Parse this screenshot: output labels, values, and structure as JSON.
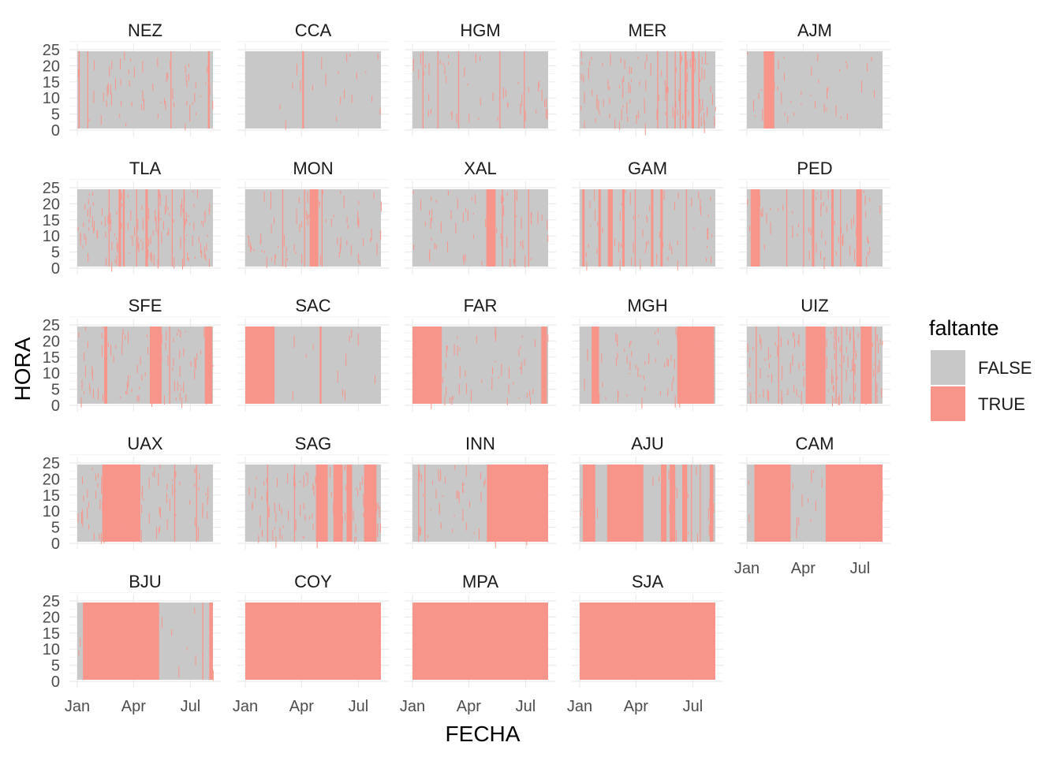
{
  "chart_data": {
    "type": "heatmap",
    "title": "",
    "xlabel": "FECHA",
    "ylabel": "HORA",
    "x_range": [
      "2023-01-01",
      "2023-08-06"
    ],
    "y_range": [
      0,
      23
    ],
    "y_ticks": [
      "0",
      "5",
      "10",
      "15",
      "20",
      "25"
    ],
    "x_ticks": [
      "Jan",
      "Apr",
      "Jul"
    ],
    "grid": true,
    "legend": {
      "title": "faltante",
      "position": "right",
      "entries": [
        {
          "label": "FALSE",
          "color": "#c8c8c8"
        },
        {
          "label": "TRUE",
          "color": "#f8958b"
        }
      ]
    },
    "colors": {
      "false": "#c8c8c8",
      "true": "#f8958b",
      "grid": "#ebebeb"
    },
    "note_units": "missing intervals given as date ranges; scattered short gaps described per panel as count of isolated missing hours",
    "panels": [
      {
        "name": "NEZ",
        "full_missing": [
          [
            "2023-01-03",
            "2023-01-03"
          ],
          [
            "2023-07-29",
            "2023-07-30"
          ]
        ],
        "scatter": 60,
        "vlines": [
          "2023-01-17",
          "2023-05-30"
        ]
      },
      {
        "name": "CCA",
        "full_missing": [
          [
            "2023-04-02",
            "2023-04-03"
          ]
        ],
        "scatter": 20,
        "vlines": []
      },
      {
        "name": "HGM",
        "full_missing": [],
        "scatter": 45,
        "vlines": [
          "2023-01-17",
          "2023-02-10",
          "2023-03-15",
          "2023-05-20",
          "2023-06-28"
        ]
      },
      {
        "name": "MER",
        "full_missing": [
          [
            "2023-06-18",
            "2023-06-19"
          ],
          [
            "2023-06-29",
            "2023-07-01"
          ]
        ],
        "scatter": 110,
        "vlines": [
          "2023-05-05",
          "2023-05-20",
          "2023-06-02",
          "2023-06-10",
          "2023-07-10"
        ]
      },
      {
        "name": "AJM",
        "full_missing": [
          [
            "2023-01-28",
            "2023-02-12"
          ]
        ],
        "scatter": 40,
        "vlines": []
      },
      {
        "name": "TLA",
        "full_missing": [
          [
            "2023-03-08",
            "2023-03-10"
          ],
          [
            "2023-03-15",
            "2023-03-16"
          ],
          [
            "2023-04-20",
            "2023-04-22"
          ]
        ],
        "scatter": 130,
        "vlines": [
          "2023-02-20",
          "2023-04-05",
          "2023-05-10",
          "2023-06-01",
          "2023-06-20"
        ]
      },
      {
        "name": "MON",
        "full_missing": [
          [
            "2023-04-14",
            "2023-04-26"
          ]
        ],
        "scatter": 70,
        "vlines": [
          "2023-03-01",
          "2023-04-05",
          "2023-05-03"
        ]
      },
      {
        "name": "XAL",
        "full_missing": [
          [
            "2023-04-29",
            "2023-05-12"
          ]
        ],
        "scatter": 65,
        "vlines": [
          "2023-05-24",
          "2023-06-13",
          "2023-07-05"
        ]
      },
      {
        "name": "GAM",
        "full_missing": [
          [
            "2023-01-05",
            "2023-01-07"
          ],
          [
            "2023-01-31",
            "2023-02-02"
          ],
          [
            "2023-02-15",
            "2023-02-21"
          ],
          [
            "2023-03-10",
            "2023-03-12"
          ],
          [
            "2023-04-25",
            "2023-04-27"
          ],
          [
            "2023-05-10",
            "2023-05-12"
          ]
        ],
        "scatter": 60,
        "vlines": [
          "2023-03-30",
          "2023-06-20"
        ]
      },
      {
        "name": "PED",
        "full_missing": [
          [
            "2023-01-07",
            "2023-01-20"
          ],
          [
            "2023-04-15",
            "2023-04-17"
          ],
          [
            "2023-05-16",
            "2023-05-18"
          ],
          [
            "2023-06-25",
            "2023-07-02"
          ]
        ],
        "scatter": 70,
        "vlines": [
          "2023-03-05",
          "2023-04-01",
          "2023-05-30"
        ]
      },
      {
        "name": "SFE",
        "full_missing": [
          [
            "2023-02-13",
            "2023-02-16"
          ],
          [
            "2023-04-27",
            "2023-05-14"
          ],
          [
            "2023-07-24",
            "2023-08-03"
          ]
        ],
        "scatter": 85,
        "vlines": [
          "2023-05-28"
        ]
      },
      {
        "name": "SAC",
        "full_missing": [
          [
            "2023-01-01",
            "2023-02-15"
          ],
          [
            "2023-04-30",
            "2023-05-01"
          ]
        ],
        "scatter": 15,
        "vlines": []
      },
      {
        "name": "FAR",
        "full_missing": [
          [
            "2023-01-01",
            "2023-02-15"
          ],
          [
            "2023-07-26",
            "2023-08-02"
          ]
        ],
        "scatter": 60,
        "vlines": []
      },
      {
        "name": "MGH",
        "full_missing": [
          [
            "2023-01-20",
            "2023-01-30"
          ],
          [
            "2023-06-06",
            "2023-08-02"
          ]
        ],
        "scatter": 70,
        "vlines": []
      },
      {
        "name": "UIZ",
        "full_missing": [
          [
            "2023-04-05",
            "2023-05-05"
          ],
          [
            "2023-07-02",
            "2023-07-18"
          ]
        ],
        "scatter": 140,
        "vlines": [
          "2023-01-15",
          "2023-02-20",
          "2023-05-23",
          "2023-06-01",
          "2023-06-20",
          "2023-07-25"
        ]
      },
      {
        "name": "UAX",
        "full_missing": [
          [
            "2023-02-10",
            "2023-04-10"
          ]
        ],
        "scatter": 90,
        "vlines": [
          "2023-06-05",
          "2023-07-10"
        ]
      },
      {
        "name": "SAG",
        "full_missing": [
          [
            "2023-04-24",
            "2023-05-11"
          ],
          [
            "2023-05-22",
            "2023-06-04"
          ],
          [
            "2023-06-12",
            "2023-06-19"
          ],
          [
            "2023-07-10",
            "2023-07-28"
          ]
        ],
        "scatter": 100,
        "vlines": [
          "2023-02-05",
          "2023-03-20"
        ]
      },
      {
        "name": "INN",
        "full_missing": [
          [
            "2023-04-30",
            "2023-08-06"
          ]
        ],
        "scatter": 70,
        "vlines": [
          "2023-01-10",
          "2023-01-20"
        ]
      },
      {
        "name": "AJU",
        "full_missing": [
          [
            "2023-01-06",
            "2023-01-24"
          ],
          [
            "2023-02-14",
            "2023-04-11"
          ],
          [
            "2023-05-11",
            "2023-05-18"
          ],
          [
            "2023-05-25",
            "2023-06-01"
          ],
          [
            "2023-06-14",
            "2023-06-20"
          ],
          [
            "2023-07-28",
            "2023-08-01"
          ]
        ],
        "scatter": 40,
        "vlines": [
          "2023-06-28",
          "2023-07-12"
        ]
      },
      {
        "name": "CAM",
        "full_missing": [
          [
            "2023-01-13",
            "2023-03-10"
          ],
          [
            "2023-05-07",
            "2023-08-06"
          ]
        ],
        "scatter": 50,
        "vlines": []
      },
      {
        "name": "BJU",
        "full_missing": [
          [
            "2023-01-10",
            "2023-05-10"
          ],
          [
            "2023-07-31",
            "2023-08-04"
          ]
        ],
        "scatter": 20,
        "vlines": [
          "2023-07-20"
        ]
      },
      {
        "name": "COY",
        "full_missing": [
          [
            "2023-01-01",
            "2023-08-06"
          ]
        ],
        "scatter": 0,
        "vlines": []
      },
      {
        "name": "MPA",
        "full_missing": [
          [
            "2023-01-01",
            "2023-08-06"
          ]
        ],
        "scatter": 0,
        "vlines": []
      },
      {
        "name": "SJA",
        "full_missing": [
          [
            "2023-01-01",
            "2023-08-06"
          ]
        ],
        "scatter": 0,
        "vlines": []
      }
    ]
  }
}
